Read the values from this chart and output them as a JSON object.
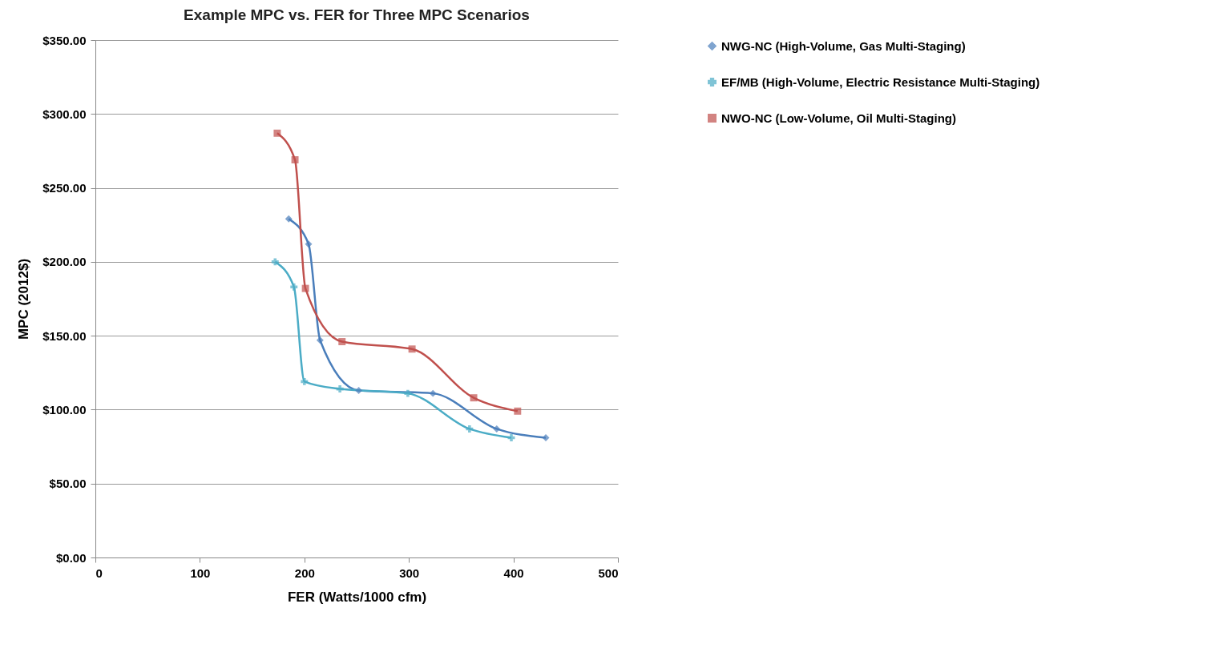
{
  "chart_data": {
    "type": "line",
    "title": "Example MPC vs. FER for Three MPC Scenarios",
    "xlabel": "FER (Watts/1000 cfm)",
    "ylabel": "MPC (2012$)",
    "xlim": [
      0,
      500
    ],
    "xticks": [
      0,
      100,
      200,
      300,
      400,
      500
    ],
    "ylim": [
      0,
      350
    ],
    "yticks": [
      {
        "value": 0,
        "label": "$0.00"
      },
      {
        "value": 50,
        "label": "$50.00"
      },
      {
        "value": 100,
        "label": "$100.00"
      },
      {
        "value": 150,
        "label": "$150.00"
      },
      {
        "value": 200,
        "label": "$200.00"
      },
      {
        "value": 250,
        "label": "$250.00"
      },
      {
        "value": 300,
        "label": "$300.00"
      },
      {
        "value": 350,
        "label": "$350.00"
      }
    ],
    "grid": "y",
    "legend": "right",
    "series": [
      {
        "name": "NWG-NC (High-Volume, Gas Multi-Staging)",
        "color": "#4a7ebb",
        "marker": "diamond",
        "x": [
          185,
          204,
          215,
          252,
          323,
          384,
          431
        ],
        "values": [
          229,
          212,
          147,
          113,
          111,
          87,
          81
        ]
      },
      {
        "name": "EF/MB (High-Volume, Electric Resistance Multi-Staging)",
        "color": "#4bacc6",
        "marker": "cross",
        "x": [
          172,
          190,
          200,
          234,
          299,
          358,
          398
        ],
        "values": [
          200,
          183,
          119,
          114,
          111,
          87,
          81
        ]
      },
      {
        "name": "NWO-NC (Low-Volume, Oil Multi-Staging)",
        "color": "#c0504d",
        "marker": "square",
        "x": [
          174,
          191,
          201,
          236,
          303,
          362,
          404
        ],
        "values": [
          287,
          269,
          182,
          146,
          141,
          108,
          99
        ]
      }
    ]
  }
}
